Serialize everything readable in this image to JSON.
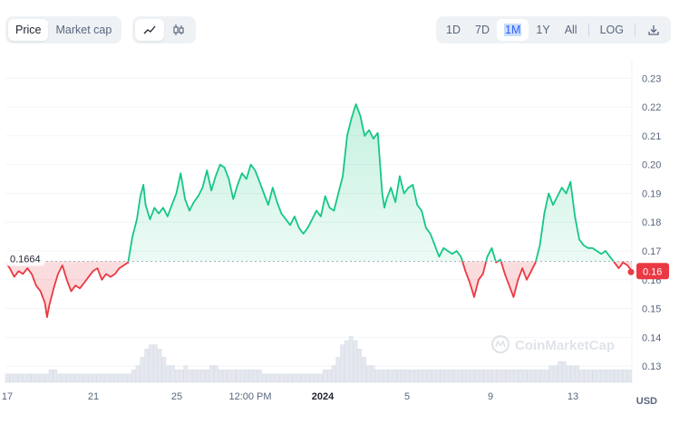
{
  "toolbar": {
    "metric_tabs": [
      {
        "label": "Price",
        "active": true
      },
      {
        "label": "Market cap",
        "active": false
      }
    ],
    "chart_type_buttons": [
      {
        "icon": "line-chart-icon",
        "active": true
      },
      {
        "icon": "candlestick-icon",
        "active": false
      }
    ],
    "ranges": [
      {
        "label": "1D"
      },
      {
        "label": "7D"
      },
      {
        "label": "1M",
        "selected": true
      },
      {
        "label": "1Y"
      },
      {
        "label": "All"
      }
    ],
    "log_label": "LOG",
    "download_icon": "download-icon"
  },
  "chart_data": {
    "type": "area",
    "y_axis": {
      "min": 0.125,
      "max": 0.232,
      "ticks": [
        "0.23",
        "0.22",
        "0.21",
        "0.20",
        "0.19",
        "0.18",
        "0.17",
        "0.16",
        "0.15",
        "0.14",
        "0.13"
      ],
      "position": "right"
    },
    "x_ticks": [
      {
        "label": "17",
        "bold": false
      },
      {
        "label": "21",
        "bold": false
      },
      {
        "label": "25",
        "bold": false
      },
      {
        "label": "12:00 PM",
        "bold": false
      },
      {
        "label": "2024",
        "bold": true
      },
      {
        "label": "5",
        "bold": false
      },
      {
        "label": "9",
        "bold": false
      },
      {
        "label": "13",
        "bold": false
      }
    ],
    "reference_value": 0.1664,
    "reference_label": "0.1664",
    "current_value": 0.163,
    "current_label": "0.16",
    "unit_label": "USD",
    "watermark": "CoinMarketCap",
    "colors": {
      "up": "#16c784",
      "down": "#ea3943",
      "volume": "#cfd6e4"
    },
    "price_series": [
      [
        0,
        0.166
      ],
      [
        1,
        0.164
      ],
      [
        2,
        0.161
      ],
      [
        3,
        0.163
      ],
      [
        4,
        0.162
      ],
      [
        5,
        0.164
      ],
      [
        6,
        0.162
      ],
      [
        7,
        0.158
      ],
      [
        8,
        0.156
      ],
      [
        9,
        0.152
      ],
      [
        9.5,
        0.147
      ],
      [
        10,
        0.151
      ],
      [
        11,
        0.157
      ],
      [
        12,
        0.162
      ],
      [
        13,
        0.165
      ],
      [
        14,
        0.16
      ],
      [
        15,
        0.156
      ],
      [
        16,
        0.158
      ],
      [
        17,
        0.157
      ],
      [
        18,
        0.159
      ],
      [
        19,
        0.161
      ],
      [
        20,
        0.163
      ],
      [
        21,
        0.164
      ],
      [
        22,
        0.16
      ],
      [
        23,
        0.162
      ],
      [
        24,
        0.161
      ],
      [
        25,
        0.162
      ],
      [
        26,
        0.164
      ],
      [
        27,
        0.165
      ],
      [
        28,
        0.166
      ],
      [
        29,
        0.175
      ],
      [
        30,
        0.181
      ],
      [
        30.8,
        0.189
      ],
      [
        31.5,
        0.193
      ],
      [
        32,
        0.186
      ],
      [
        33,
        0.181
      ],
      [
        34,
        0.185
      ],
      [
        35,
        0.183
      ],
      [
        36,
        0.185
      ],
      [
        37,
        0.182
      ],
      [
        38,
        0.186
      ],
      [
        39,
        0.19
      ],
      [
        40,
        0.197
      ],
      [
        41,
        0.188
      ],
      [
        42,
        0.184
      ],
      [
        43,
        0.187
      ],
      [
        44,
        0.189
      ],
      [
        45,
        0.192
      ],
      [
        46,
        0.198
      ],
      [
        47,
        0.191
      ],
      [
        48,
        0.196
      ],
      [
        49,
        0.2
      ],
      [
        50,
        0.199
      ],
      [
        51,
        0.195
      ],
      [
        52,
        0.188
      ],
      [
        53,
        0.193
      ],
      [
        54,
        0.197
      ],
      [
        55,
        0.195
      ],
      [
        56,
        0.2
      ],
      [
        57,
        0.198
      ],
      [
        58,
        0.194
      ],
      [
        59,
        0.19
      ],
      [
        60,
        0.186
      ],
      [
        61,
        0.192
      ],
      [
        62,
        0.187
      ],
      [
        63,
        0.183
      ],
      [
        64,
        0.181
      ],
      [
        65,
        0.179
      ],
      [
        66,
        0.182
      ],
      [
        67,
        0.178
      ],
      [
        68,
        0.176
      ],
      [
        69,
        0.178
      ],
      [
        70,
        0.181
      ],
      [
        71,
        0.184
      ],
      [
        72,
        0.182
      ],
      [
        73,
        0.189
      ],
      [
        74,
        0.185
      ],
      [
        75,
        0.184
      ],
      [
        76,
        0.19
      ],
      [
        77,
        0.196
      ],
      [
        78,
        0.21
      ],
      [
        79,
        0.216
      ],
      [
        80,
        0.221
      ],
      [
        81,
        0.217
      ],
      [
        82,
        0.21
      ],
      [
        83,
        0.212
      ],
      [
        84,
        0.209
      ],
      [
        85,
        0.211
      ],
      [
        86,
        0.19
      ],
      [
        86.5,
        0.185
      ],
      [
        87,
        0.188
      ],
      [
        88,
        0.192
      ],
      [
        89,
        0.187
      ],
      [
        90,
        0.196
      ],
      [
        91,
        0.19
      ],
      [
        92,
        0.192
      ],
      [
        93,
        0.193
      ],
      [
        94,
        0.186
      ],
      [
        95,
        0.184
      ],
      [
        96,
        0.178
      ],
      [
        97,
        0.176
      ],
      [
        98,
        0.172
      ],
      [
        99,
        0.168
      ],
      [
        100,
        0.171
      ],
      [
        101,
        0.17
      ],
      [
        102,
        0.169
      ],
      [
        103,
        0.17
      ],
      [
        104,
        0.168
      ],
      [
        105,
        0.163
      ],
      [
        106,
        0.159
      ],
      [
        107,
        0.154
      ],
      [
        108,
        0.16
      ],
      [
        109,
        0.162
      ],
      [
        110,
        0.168
      ],
      [
        111,
        0.171
      ],
      [
        112,
        0.166
      ],
      [
        113,
        0.167
      ],
      [
        114,
        0.162
      ],
      [
        115,
        0.158
      ],
      [
        116,
        0.154
      ],
      [
        117,
        0.16
      ],
      [
        118,
        0.164
      ],
      [
        119,
        0.16
      ],
      [
        120,
        0.163
      ],
      [
        121,
        0.166
      ],
      [
        122,
        0.172
      ],
      [
        123,
        0.183
      ],
      [
        124,
        0.19
      ],
      [
        125,
        0.186
      ],
      [
        126,
        0.189
      ],
      [
        127,
        0.192
      ],
      [
        128,
        0.19
      ],
      [
        129,
        0.194
      ],
      [
        130,
        0.182
      ],
      [
        131,
        0.174
      ],
      [
        132,
        0.172
      ],
      [
        133,
        0.171
      ],
      [
        134,
        0.171
      ],
      [
        135,
        0.17
      ],
      [
        136,
        0.169
      ],
      [
        137,
        0.17
      ],
      [
        138,
        0.168
      ],
      [
        139,
        0.166
      ],
      [
        140,
        0.164
      ],
      [
        141,
        0.166
      ],
      [
        142,
        0.165
      ],
      [
        143,
        0.163
      ]
    ],
    "volume_series": [
      2,
      2,
      2,
      2,
      2,
      2,
      2,
      2,
      2,
      2,
      3,
      3,
      2,
      2,
      2,
      2,
      2,
      2,
      2,
      2,
      2,
      2,
      2,
      2,
      2,
      2,
      2,
      2,
      2,
      3,
      4,
      6,
      8,
      9,
      9,
      8,
      6,
      4,
      4,
      3,
      3,
      4,
      3,
      3,
      3,
      3,
      3,
      4,
      4,
      3,
      3,
      3,
      3,
      3,
      3,
      3,
      3,
      3,
      3,
      2,
      2,
      2,
      2,
      2,
      2,
      2,
      2,
      2,
      2,
      2,
      2,
      2,
      2,
      3,
      3,
      4,
      6,
      9,
      10,
      11,
      10,
      8,
      6,
      4,
      4,
      3,
      3,
      3,
      3,
      3,
      3,
      3,
      3,
      3,
      3,
      3,
      3,
      3,
      3,
      3,
      3,
      3,
      3,
      3,
      3,
      3,
      3,
      3,
      3,
      3,
      3,
      3,
      3,
      3,
      3,
      3,
      3,
      3,
      3,
      3,
      3,
      3,
      3,
      3,
      3,
      4,
      4,
      5,
      5,
      4,
      4,
      4,
      3,
      3,
      3,
      3,
      3,
      3,
      3,
      3,
      3,
      3,
      3,
      3
    ]
  }
}
